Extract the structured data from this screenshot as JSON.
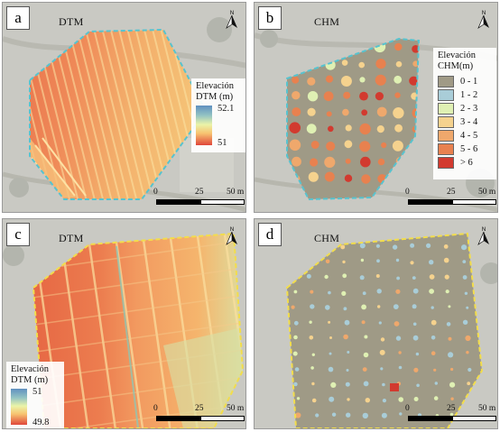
{
  "panels": [
    {
      "id": "a",
      "letter": "a",
      "title": "DTM",
      "legend": {
        "title_line1": "Elevación",
        "title_line2": "DTM (m)",
        "max": "52.1",
        "min": "51"
      },
      "scale": {
        "l0": "0",
        "l1": "25",
        "l2": "50 m"
      }
    },
    {
      "id": "b",
      "letter": "b",
      "title": "CHM",
      "legend": {
        "title_line1": "Elevación",
        "title_line2": "CHM(m)",
        "classes": [
          {
            "label": "0 - 1",
            "color": "#a09a86"
          },
          {
            "label": "1 - 2",
            "color": "#a9cdd8"
          },
          {
            "label": "2 - 3",
            "color": "#dff0b3"
          },
          {
            "label": "3 - 4",
            "color": "#f5d28e"
          },
          {
            "label": "4 - 5",
            "color": "#efa86c"
          },
          {
            "label": "5 - 6",
            "color": "#e8814f"
          },
          {
            "label": "> 6",
            "color": "#d23a2f"
          }
        ]
      },
      "scale": {
        "l0": "0",
        "l1": "25",
        "l2": "50 m"
      }
    },
    {
      "id": "c",
      "letter": "c",
      "title": "DTM",
      "legend": {
        "title_line1": "Elevación",
        "title_line2": "DTM (m)",
        "max": "51",
        "min": "49.8"
      },
      "scale": {
        "l0": "0",
        "l1": "25",
        "l2": "50 m"
      }
    },
    {
      "id": "d",
      "letter": "d",
      "title": "CHM",
      "scale": {
        "l0": "0",
        "l1": "25",
        "l2": "50 m"
      }
    }
  ],
  "north_arrow_label": "N",
  "colors": {
    "boundary_ab": "#57c3cf",
    "boundary_cd": "#f2dd4c",
    "chm_background": "#9f9a86",
    "dtm_low": "#e0463a",
    "dtm_high": "#5f90c0"
  }
}
